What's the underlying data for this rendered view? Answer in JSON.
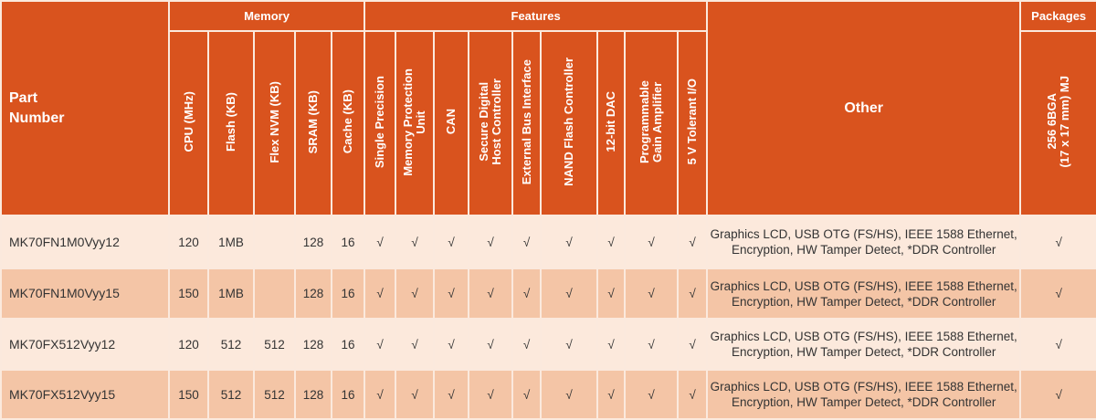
{
  "colors": {
    "header": "#d9531e",
    "row_light": "#fce9dc",
    "row_dark": "#f4c5a6"
  },
  "header": {
    "part_number": "Part\nNumber",
    "groups": {
      "memory": "Memory",
      "features": "Features",
      "packages": "Packages"
    },
    "other": "Other",
    "columns": [
      "CPU (MHz)",
      "Flash (KB)",
      "Flex NVM (KB)",
      "SRAM (KB)",
      "Cache (KB)",
      "Single Precision",
      "Memory Protection\nUnit",
      "CAN",
      "Secure Digital\nHost Controller",
      "External Bus Interface",
      "NAND Flash Controller",
      "12-bit DAC",
      "Programmable\nGain Amplifier",
      "5 V Tolerant I/O"
    ],
    "package": "256 6BGA\n(17 x 17 mm) MJ"
  },
  "rows": [
    {
      "part": "MK70FN1M0Vyy12",
      "cells": [
        "120",
        "1MB",
        "",
        "128",
        "16",
        "√",
        "√",
        "√",
        "√",
        "√",
        "√",
        "√",
        "√",
        "√"
      ],
      "other": "Graphics LCD, USB OTG (FS/HS), IEEE 1588 Ethernet, Encryption, HW Tamper Detect, *DDR Controller",
      "package": "√"
    },
    {
      "part": "MK70FN1M0Vyy15",
      "cells": [
        "150",
        "1MB",
        "",
        "128",
        "16",
        "√",
        "√",
        "√",
        "√",
        "√",
        "√",
        "√",
        "√",
        "√"
      ],
      "other": "Graphics LCD, USB OTG (FS/HS), IEEE 1588 Ethernet, Encryption, HW Tamper Detect, *DDR Controller",
      "package": "√"
    },
    {
      "part": "MK70FX512Vyy12",
      "cells": [
        "120",
        "512",
        "512",
        "128",
        "16",
        "√",
        "√",
        "√",
        "√",
        "√",
        "√",
        "√",
        "√",
        "√"
      ],
      "other": "Graphics LCD, USB OTG (FS/HS), IEEE 1588 Ethernet, Encryption, HW Tamper Detect, *DDR Controller",
      "package": "√"
    },
    {
      "part": "MK70FX512Vyy15",
      "cells": [
        "150",
        "512",
        "512",
        "128",
        "16",
        "√",
        "√",
        "√",
        "√",
        "√",
        "√",
        "√",
        "√",
        "√"
      ],
      "other": "Graphics LCD, USB OTG (FS/HS), IEEE 1588 Ethernet, Encryption, HW Tamper Detect, *DDR Controller",
      "package": "√"
    }
  ]
}
